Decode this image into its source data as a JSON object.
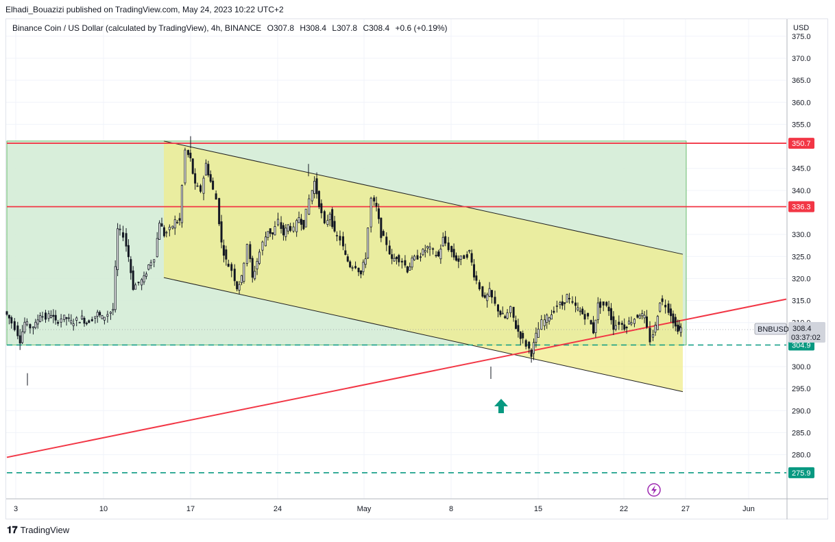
{
  "header": {
    "published": "Elhadi_Bouazizi published on TradingView.com, May 24, 2023 10:22 UTC+2"
  },
  "legend": {
    "symbol": "Binance Coin / US Dollar (calculated by TradingView), 4h, BINANCE",
    "open": "O307.8",
    "high": "H308.4",
    "low": "L307.8",
    "close": "C308.4",
    "change": "+0.6 (+0.19%)"
  },
  "footer": {
    "brand": "TradingView"
  },
  "chart_data": {
    "type": "candlestick",
    "currency_label": "USD",
    "y_ticks": [
      "375.0",
      "370.0",
      "365.0",
      "360.0",
      "355.0",
      "345.0",
      "340.0",
      "330.0",
      "325.0",
      "320.0",
      "315.0",
      "310.0",
      "300.0",
      "295.0",
      "290.0",
      "285.0",
      "280.0"
    ],
    "x_ticks": [
      "3",
      "10",
      "17",
      "24",
      "May",
      "8",
      "15",
      "22",
      "27",
      "Jun"
    ],
    "ylim": [
      272,
      377
    ],
    "price_close_path": [
      [
        0,
        312.5
      ],
      [
        0.3,
        311
      ],
      [
        0.7,
        309
      ],
      [
        1.0,
        306
      ],
      [
        1.3,
        310
      ],
      [
        1.7,
        309
      ],
      [
        2.0,
        309.5
      ],
      [
        2.3,
        312
      ],
      [
        2.7,
        311
      ],
      [
        3.0,
        312
      ],
      [
        3.3,
        310
      ],
      [
        3.7,
        311
      ],
      [
        4.0,
        311
      ],
      [
        4.3,
        310
      ],
      [
        4.7,
        310.5
      ],
      [
        5.0,
        311
      ],
      [
        5.3,
        310
      ],
      [
        5.7,
        311
      ],
      [
        6.0,
        312
      ],
      [
        6.3,
        311
      ],
      [
        6.7,
        312
      ],
      [
        7.0,
        313
      ],
      [
        7.3,
        331
      ],
      [
        7.7,
        330
      ],
      [
        8.0,
        325
      ],
      [
        8.3,
        318
      ],
      [
        8.7,
        319
      ],
      [
        9.0,
        320
      ],
      [
        9.3,
        323
      ],
      [
        9.7,
        325
      ],
      [
        10.0,
        333
      ],
      [
        10.3,
        330
      ],
      [
        10.7,
        331
      ],
      [
        11.0,
        333
      ],
      [
        11.3,
        333
      ],
      [
        11.7,
        349
      ],
      [
        12.0,
        347
      ],
      [
        12.3,
        341
      ],
      [
        12.7,
        340
      ],
      [
        13.0,
        346
      ],
      [
        13.3,
        342
      ],
      [
        13.7,
        338
      ],
      [
        14.0,
        328
      ],
      [
        14.3,
        324
      ],
      [
        14.7,
        322
      ],
      [
        15.0,
        318
      ],
      [
        15.3,
        320
      ],
      [
        15.7,
        328
      ],
      [
        16.0,
        320
      ],
      [
        16.3,
        324
      ],
      [
        16.7,
        328
      ],
      [
        17.0,
        331
      ],
      [
        17.3,
        330
      ],
      [
        17.7,
        333
      ],
      [
        18.0,
        330
      ],
      [
        18.3,
        332
      ],
      [
        18.7,
        331
      ],
      [
        19.0,
        334
      ],
      [
        19.3,
        332
      ],
      [
        19.7,
        338
      ],
      [
        20.0,
        342
      ],
      [
        20.3,
        337
      ],
      [
        20.7,
        332
      ],
      [
        21.0,
        335
      ],
      [
        21.3,
        330
      ],
      [
        21.7,
        329
      ],
      [
        22.0,
        325
      ],
      [
        22.3,
        323
      ],
      [
        22.7,
        323
      ],
      [
        23.0,
        321
      ],
      [
        23.3,
        325
      ],
      [
        23.7,
        338
      ],
      [
        24.0,
        336
      ],
      [
        24.3,
        330
      ],
      [
        24.7,
        328
      ],
      [
        25.0,
        324
      ],
      [
        25.3,
        325
      ],
      [
        25.7,
        324
      ],
      [
        26.0,
        322
      ],
      [
        26.3,
        324
      ],
      [
        26.7,
        325
      ],
      [
        27.0,
        326
      ],
      [
        27.3,
        327
      ],
      [
        27.7,
        326
      ],
      [
        28.0,
        325
      ],
      [
        28.3,
        329
      ],
      [
        28.7,
        327
      ],
      [
        29.0,
        325
      ],
      [
        29.3,
        324
      ],
      [
        29.7,
        325
      ],
      [
        30.0,
        326
      ],
      [
        30.3,
        321
      ],
      [
        30.7,
        318
      ],
      [
        31.0,
        315
      ],
      [
        31.3,
        317
      ],
      [
        31.7,
        314
      ],
      [
        32.0,
        312
      ],
      [
        32.3,
        311
      ],
      [
        32.7,
        313
      ],
      [
        33.0,
        309
      ],
      [
        33.3,
        307
      ],
      [
        33.7,
        305
      ],
      [
        34.0,
        303
      ],
      [
        34.3,
        307
      ],
      [
        34.7,
        310
      ],
      [
        35.0,
        311
      ],
      [
        35.3,
        312
      ],
      [
        35.7,
        314
      ],
      [
        36.0,
        314
      ],
      [
        36.3,
        316
      ],
      [
        36.7,
        314
      ],
      [
        37.0,
        313
      ],
      [
        37.3,
        312
      ],
      [
        37.7,
        311
      ],
      [
        38.0,
        308
      ],
      [
        38.3,
        314
      ],
      [
        38.7,
        314
      ],
      [
        39.0,
        313
      ],
      [
        39.3,
        309
      ],
      [
        39.7,
        310
      ],
      [
        40.0,
        309
      ],
      [
        40.3,
        310
      ],
      [
        40.7,
        311
      ],
      [
        41.0,
        312
      ],
      [
        41.3,
        311
      ],
      [
        41.7,
        306
      ],
      [
        42.0,
        309
      ],
      [
        42.3,
        315
      ],
      [
        42.7,
        314
      ],
      [
        43.0,
        312
      ],
      [
        43.3,
        309
      ],
      [
        43.5,
        308.4
      ]
    ],
    "horizontal_levels": [
      {
        "value": 350.7,
        "label": "350.7",
        "color": "#f23645",
        "style": "solid"
      },
      {
        "value": 336.3,
        "label": "336.3",
        "color": "#f23645",
        "style": "solid"
      },
      {
        "value": 304.9,
        "label": "304.9",
        "color": "#089981",
        "style": "dashed"
      },
      {
        "value": 275.9,
        "label": "275.9",
        "color": "#089981",
        "style": "dashed"
      }
    ],
    "current_price": {
      "symbol": "BNBUSD",
      "price": "308.4",
      "countdown": "03:37:02"
    },
    "colors": {
      "green_zone": "#d4ecd6",
      "channel_fill": "#f0ec8c",
      "trendline": "#f23645",
      "arrow": "#089981"
    }
  }
}
